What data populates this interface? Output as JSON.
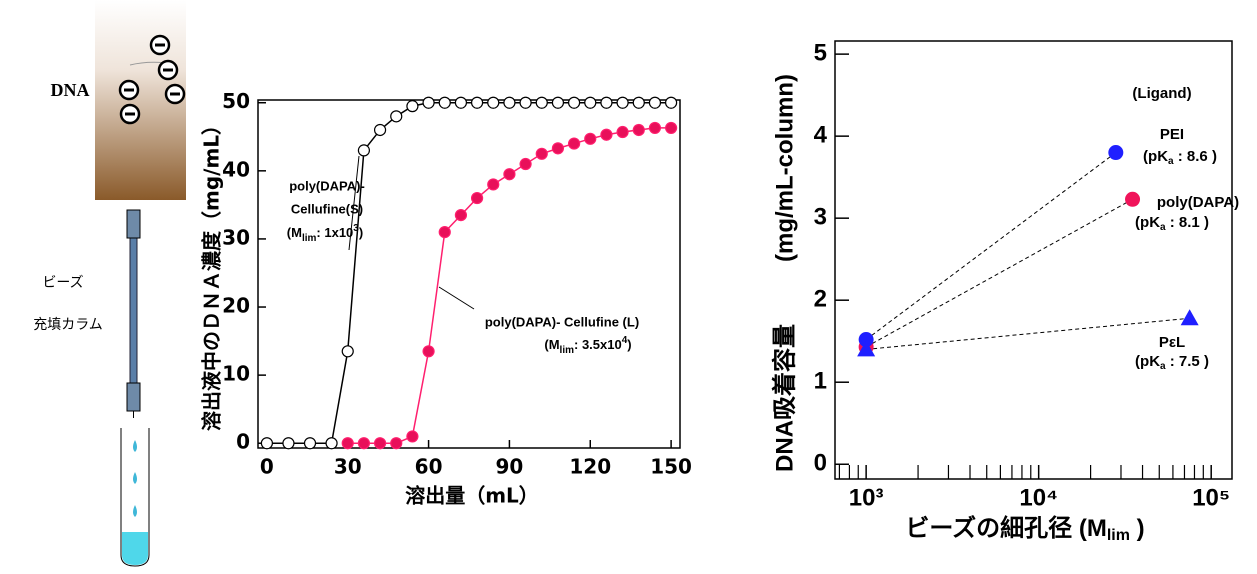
{
  "illustration": {
    "sample_label": "DNA",
    "column_label": [
      "ビーズ",
      "充填カラム"
    ]
  },
  "chart_data": [
    {
      "type": "line",
      "y_label": "溶出液中のＤＮＡ濃度（mg/mL）",
      "x_label": "溶出量（mL）",
      "xlim": [
        -3.3,
        153.3
      ],
      "ylim": [
        -0.7,
        50.4
      ],
      "xticks": [
        0,
        30,
        60,
        90,
        120,
        150
      ],
      "yticks": [
        0,
        10,
        20,
        30,
        40,
        50
      ],
      "series": [
        {
          "color": "#000000",
          "marker_fill": "#ffffff",
          "x": [
            0,
            8,
            16,
            24,
            30,
            36,
            42,
            48,
            54,
            60,
            66,
            72,
            78,
            84,
            90,
            96,
            102,
            108,
            114,
            120,
            126,
            132,
            138,
            144,
            150
          ],
          "values": [
            0,
            0,
            0,
            0,
            13.5,
            43,
            46,
            48,
            49.5,
            50,
            50,
            50,
            50,
            50,
            50,
            50,
            50,
            50,
            50,
            50,
            50,
            50,
            50,
            50,
            50
          ]
        },
        {
          "color": "#ff1f6e",
          "marker_fill": "#e8105a",
          "x": [
            30,
            36,
            42,
            48,
            54,
            60,
            66,
            72,
            78,
            84,
            90,
            96,
            102,
            108,
            114,
            120,
            126,
            132,
            138,
            144,
            150
          ],
          "values": [
            0,
            0,
            0,
            0,
            1,
            13.5,
            31,
            33.5,
            36,
            38,
            39.5,
            41,
            42.5,
            43.3,
            44,
            44.7,
            45.3,
            45.7,
            46,
            46.3,
            46.3
          ]
        }
      ],
      "annotations": [
        {
          "lines": [
            [
              "poly(DAPA)-"
            ],
            [
              "Cellufine(S)"
            ],
            [
              "(M",
              "lim",
              ": 1x10",
              "3",
              ")"
            ]
          ]
        },
        {
          "lines": [
            [
              "poly(DAPA)- Cellufine (L)"
            ],
            [
              "(M",
              "lim",
              ": 3.5x10",
              "4",
              ")"
            ]
          ]
        }
      ]
    },
    {
      "type": "scatter",
      "log_x": true,
      "y_label": [
        "DNA吸着容量",
        "(mg/mL-column)"
      ],
      "x_label": [
        "ビーズの細孔径 (M",
        "lim",
        " )"
      ],
      "xlim": [
        660,
        132000
      ],
      "ylim": [
        -0.18,
        5.16
      ],
      "xticks": [
        {
          "value": 1000,
          "label": "10³"
        },
        {
          "value": 10000,
          "label": "10⁴"
        },
        {
          "value": 100000,
          "label": "10⁵"
        }
      ],
      "xminorticks": [
        700,
        800,
        900,
        2000,
        3000,
        4000,
        5000,
        6000,
        7000,
        8000,
        9000,
        20000,
        30000,
        40000,
        50000,
        60000,
        70000,
        80000,
        90000
      ],
      "yticks": [
        0,
        1,
        2,
        3,
        4,
        5
      ],
      "legend_title": "(Ligand)",
      "series": [
        {
          "name": "PEI",
          "color": "#1f1fff",
          "marker": "circle",
          "x": [
            1000,
            28000
          ],
          "values": [
            1.52,
            3.8
          ],
          "pka": [
            "(pK",
            "a",
            " : 8.6 )"
          ]
        },
        {
          "name": "poly(DAPA)",
          "color": "#f0145a",
          "marker": "circle",
          "x": [
            1000,
            35000
          ],
          "values": [
            1.43,
            3.23
          ],
          "pka": [
            "(pK",
            "a",
            " : 8.1 )"
          ]
        },
        {
          "name": "PεL",
          "color": "#1f1fff",
          "marker": "triangle",
          "x": [
            1000,
            75000
          ],
          "values": [
            1.4,
            1.78
          ],
          "pka": [
            "(pK",
            "a",
            " : 7.5 )"
          ]
        }
      ]
    }
  ]
}
